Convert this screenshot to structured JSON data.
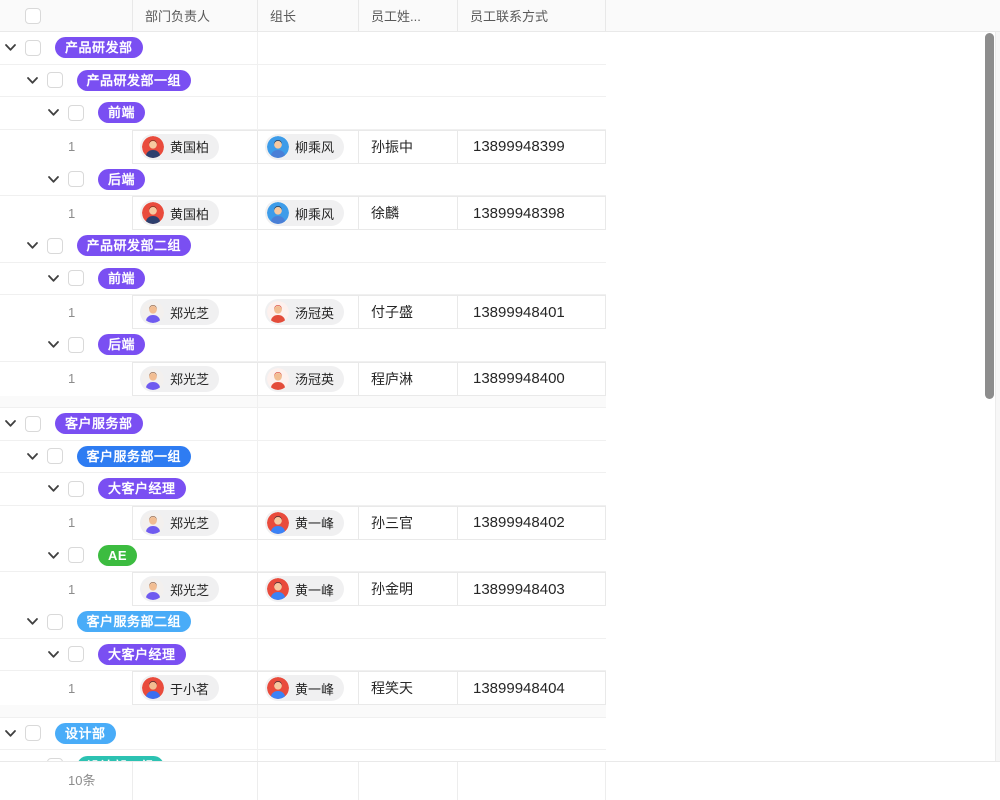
{
  "table": {
    "columns": [
      "",
      "部门负责人",
      "组长",
      "员工姓...",
      "员工联系方式"
    ],
    "footer_total": "10条"
  },
  "badge_palette": {
    "purple": "#7a4ff2",
    "blue": "#2e7cf2",
    "light_blue": "#49acf8",
    "green": "#3cbc40",
    "teal": "#2cc2b2"
  },
  "avatar_palette": {
    "huang_guobai": {
      "bg": "#e94b3c",
      "hair": "#6e3a27",
      "skin": "#f6c9a0",
      "shirt": "#2d3f6e"
    },
    "liu_chengfeng": {
      "bg": "#3d9ce9",
      "hair": "#2f2f3a",
      "skin": "#f6c9a0",
      "shirt": "#4a7fd6"
    },
    "zheng_guangzhi": {
      "bg": "#f3f0ee",
      "hair": "#8a5a3b",
      "skin": "#f2bd92",
      "shirt": "#6f5bf0"
    },
    "tang_guanying": {
      "bg": "#fdf1ee",
      "hair": "#d8402f",
      "skin": "#f2bd92",
      "shirt": "#e34c3a"
    },
    "huang_yifeng": {
      "bg": "#e94b3c",
      "hair": "#31313c",
      "skin": "#f6c9a0",
      "shirt": "#3b82f6"
    },
    "yu_xiaoming": {
      "bg": "#e94b3c",
      "hair": "#2f2f3a",
      "skin": "#f2bd92",
      "shirt": "#3b6ef0"
    }
  },
  "rows": [
    {
      "type": "group",
      "level": 1,
      "label": "产品研发部",
      "color": "purple"
    },
    {
      "type": "group",
      "level": 2,
      "label": "产品研发部一组",
      "color": "purple"
    },
    {
      "type": "group",
      "level": 3,
      "label": "前端",
      "color": "purple"
    },
    {
      "type": "data",
      "index": "1",
      "manager": "黄国柏",
      "manager_avatar": "huang_guobai",
      "leader": "柳乘风",
      "leader_avatar": "liu_chengfeng",
      "employee": "孙振中",
      "phone": "13899948399"
    },
    {
      "type": "group",
      "level": 3,
      "label": "后端",
      "color": "purple"
    },
    {
      "type": "data",
      "index": "1",
      "manager": "黄国柏",
      "manager_avatar": "huang_guobai",
      "leader": "柳乘风",
      "leader_avatar": "liu_chengfeng",
      "employee": "徐麟",
      "phone": "13899948398"
    },
    {
      "type": "group",
      "level": 2,
      "label": "产品研发部二组",
      "color": "purple"
    },
    {
      "type": "group",
      "level": 3,
      "label": "前端",
      "color": "purple"
    },
    {
      "type": "data",
      "index": "1",
      "manager": "郑光芝",
      "manager_avatar": "zheng_guangzhi",
      "leader": "汤冠英",
      "leader_avatar": "tang_guanying",
      "employee": "付子盛",
      "phone": "13899948401"
    },
    {
      "type": "group",
      "level": 3,
      "label": "后端",
      "color": "purple"
    },
    {
      "type": "data",
      "index": "1",
      "manager": "郑光芝",
      "manager_avatar": "zheng_guangzhi",
      "leader": "汤冠英",
      "leader_avatar": "tang_guanying",
      "employee": "程庐淋",
      "phone": "13899948400"
    },
    {
      "type": "spacer"
    },
    {
      "type": "group",
      "level": 1,
      "label": "客户服务部",
      "color": "purple"
    },
    {
      "type": "group",
      "level": 2,
      "label": "客户服务部一组",
      "color": "blue"
    },
    {
      "type": "group",
      "level": 3,
      "label": "大客户经理",
      "color": "purple"
    },
    {
      "type": "data",
      "index": "1",
      "manager": "郑光芝",
      "manager_avatar": "zheng_guangzhi",
      "leader": "黄一峰",
      "leader_avatar": "huang_yifeng",
      "employee": "孙三官",
      "phone": "13899948402"
    },
    {
      "type": "group",
      "level": 3,
      "label": "AE",
      "color": "green"
    },
    {
      "type": "data",
      "index": "1",
      "manager": "郑光芝",
      "manager_avatar": "zheng_guangzhi",
      "leader": "黄一峰",
      "leader_avatar": "huang_yifeng",
      "employee": "孙金明",
      "phone": "13899948403"
    },
    {
      "type": "group",
      "level": 2,
      "label": "客户服务部二组",
      "color": "light_blue"
    },
    {
      "type": "group",
      "level": 3,
      "label": "大客户经理",
      "color": "purple"
    },
    {
      "type": "data",
      "index": "1",
      "manager": "于小茗",
      "manager_avatar": "yu_xiaoming",
      "leader": "黄一峰",
      "leader_avatar": "huang_yifeng",
      "employee": "程笑天",
      "phone": "13899948404"
    },
    {
      "type": "spacer"
    },
    {
      "type": "group",
      "level": 1,
      "label": "设计部",
      "color": "light_blue"
    },
    {
      "type": "partial",
      "level": 2,
      "label": "设计部一组",
      "color": "teal"
    }
  ]
}
